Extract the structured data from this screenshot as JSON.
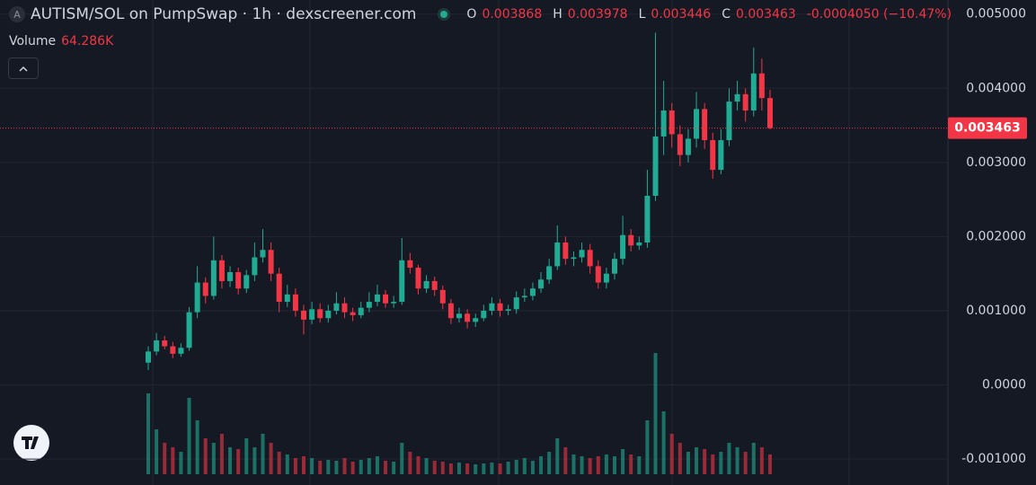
{
  "header": {
    "logo_letter": "A"
  },
  "chart_data": {
    "type": "candlestick",
    "title": "AUTISM/SOL on PumpSwap · 1h · dexscreener.com",
    "legend": [
      {
        "label": "O",
        "value": 0.003868
      },
      {
        "label": "H",
        "value": 0.003978
      },
      {
        "label": "L",
        "value": 0.003446
      },
      {
        "label": "C",
        "value": 0.003463
      }
    ],
    "change": "-0.0004050 (−10.47%)",
    "volume_label": "Volume",
    "volume_total": "64.286K",
    "current_price": 0.003463,
    "up_color": "#22ab94",
    "down_color": "#f23645",
    "grid": true,
    "ylim": [
      -0.00135,
      0.00519
    ],
    "yticks": [
      {
        "value": 0.005,
        "label": "0.005000"
      },
      {
        "value": 0.004,
        "label": "0.004000"
      },
      {
        "value": 0.003,
        "label": "0.003000"
      },
      {
        "value": 0.002,
        "label": "0.002000"
      },
      {
        "value": 0.001,
        "label": "0.001000"
      },
      {
        "value": 0,
        "label": "0.0000"
      },
      {
        "value": -0.001,
        "label": "-0.001000"
      }
    ],
    "open": [
      0.0003,
      0.00045,
      0.0006,
      0.00052,
      0.00042,
      0.0005,
      0.00098,
      0.00138,
      0.0012,
      0.00168,
      0.0014,
      0.00152,
      0.0013,
      0.00148,
      0.00172,
      0.00182,
      0.0015,
      0.00112,
      0.00122,
      0.001,
      0.00088,
      0.00102,
      0.0009,
      0.001,
      0.0011,
      0.00098,
      0.00094,
      0.00104,
      0.00112,
      0.00122,
      0.0011,
      0.00112,
      0.00168,
      0.00158,
      0.0013,
      0.0014,
      0.00128,
      0.0011,
      0.0009,
      0.00096,
      0.00085,
      0.0009,
      0.001,
      0.0011,
      0.001,
      0.00102,
      0.00118,
      0.0012,
      0.0013,
      0.00142,
      0.0016,
      0.00192,
      0.0017,
      0.00172,
      0.00182,
      0.0016,
      0.00138,
      0.0015,
      0.0017,
      0.00202,
      0.00188,
      0.00192,
      0.00255,
      0.00335,
      0.0037,
      0.00338,
      0.0031,
      0.00332,
      0.00372,
      0.0033,
      0.0029,
      0.0033,
      0.00382,
      0.00392,
      0.0037,
      0.0042,
      0.003868
    ],
    "high": [
      0.00052,
      0.0007,
      0.00066,
      0.00058,
      0.00056,
      0.00105,
      0.0016,
      0.00145,
      0.002,
      0.00175,
      0.0016,
      0.00158,
      0.00155,
      0.00192,
      0.0021,
      0.00192,
      0.00158,
      0.00135,
      0.0013,
      0.00108,
      0.00112,
      0.0011,
      0.00108,
      0.00125,
      0.00118,
      0.00104,
      0.00112,
      0.00125,
      0.00135,
      0.00128,
      0.0012,
      0.00198,
      0.00178,
      0.00162,
      0.00148,
      0.00146,
      0.00134,
      0.00116,
      0.00104,
      0.00102,
      0.00096,
      0.00108,
      0.00118,
      0.00116,
      0.00108,
      0.00126,
      0.0013,
      0.00138,
      0.00152,
      0.0017,
      0.00215,
      0.002,
      0.0018,
      0.00192,
      0.0019,
      0.00168,
      0.00158,
      0.00178,
      0.00228,
      0.0021,
      0.002,
      0.0029,
      0.00475,
      0.0041,
      0.0038,
      0.0035,
      0.00345,
      0.00395,
      0.0038,
      0.0034,
      0.00345,
      0.004,
      0.0041,
      0.004,
      0.00455,
      0.0044,
      0.003978
    ],
    "low": [
      0.0002,
      0.0004,
      0.00048,
      0.00036,
      0.00038,
      0.00046,
      0.0009,
      0.0011,
      0.00115,
      0.0013,
      0.00132,
      0.00122,
      0.00124,
      0.0014,
      0.00165,
      0.0014,
      0.00098,
      0.00105,
      0.00092,
      0.00068,
      0.00082,
      0.00084,
      0.00084,
      0.00095,
      0.0009,
      0.00086,
      0.0009,
      0.00098,
      0.00106,
      0.00104,
      0.00104,
      0.00108,
      0.0015,
      0.00122,
      0.00124,
      0.0012,
      0.00102,
      0.00082,
      0.00084,
      0.00076,
      0.00078,
      0.00086,
      0.00094,
      0.00092,
      0.00094,
      0.00096,
      0.00112,
      0.00114,
      0.00124,
      0.00136,
      0.00155,
      0.00162,
      0.0016,
      0.00165,
      0.0015,
      0.0013,
      0.0013,
      0.00142,
      0.00162,
      0.0018,
      0.00182,
      0.00185,
      0.00248,
      0.0031,
      0.0032,
      0.00295,
      0.003,
      0.0032,
      0.00318,
      0.00278,
      0.00284,
      0.00322,
      0.0037,
      0.00355,
      0.00362,
      0.0037,
      0.003446
    ],
    "close": [
      0.00045,
      0.0006,
      0.00052,
      0.00042,
      0.0005,
      0.00098,
      0.00138,
      0.0012,
      0.00168,
      0.0014,
      0.00152,
      0.0013,
      0.00148,
      0.00172,
      0.00182,
      0.0015,
      0.00112,
      0.00122,
      0.001,
      0.00088,
      0.00102,
      0.0009,
      0.001,
      0.0011,
      0.00098,
      0.00094,
      0.00104,
      0.00112,
      0.00122,
      0.0011,
      0.00112,
      0.00168,
      0.00158,
      0.0013,
      0.0014,
      0.00128,
      0.0011,
      0.0009,
      0.00096,
      0.00085,
      0.0009,
      0.001,
      0.0011,
      0.001,
      0.00102,
      0.00118,
      0.0012,
      0.0013,
      0.00142,
      0.0016,
      0.00192,
      0.0017,
      0.00172,
      0.00182,
      0.0016,
      0.00138,
      0.0015,
      0.0017,
      0.00202,
      0.00188,
      0.00192,
      0.00255,
      0.00335,
      0.0037,
      0.00338,
      0.0031,
      0.00332,
      0.00372,
      0.0033,
      0.0029,
      0.0033,
      0.00382,
      0.00392,
      0.0037,
      0.0042,
      0.003868,
      0.003463
    ],
    "volume": [
      90,
      50,
      35,
      30,
      25,
      85,
      60,
      40,
      35,
      45,
      30,
      28,
      40,
      30,
      45,
      35,
      25,
      22,
      18,
      20,
      18,
      15,
      16,
      15,
      18,
      14,
      16,
      18,
      20,
      15,
      14,
      35,
      25,
      20,
      18,
      15,
      14,
      12,
      13,
      12,
      11,
      12,
      13,
      12,
      14,
      16,
      18,
      15,
      20,
      25,
      40,
      30,
      22,
      20,
      18,
      20,
      22,
      20,
      28,
      22,
      20,
      60,
      135,
      70,
      45,
      35,
      25,
      30,
      28,
      22,
      25,
      35,
      30,
      25,
      35,
      30,
      22
    ]
  }
}
